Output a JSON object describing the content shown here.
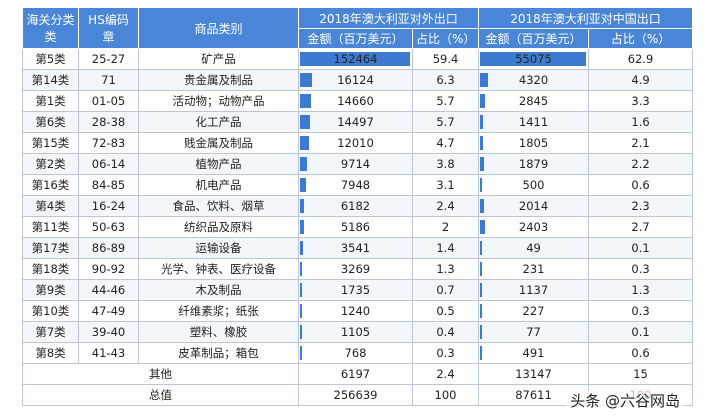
{
  "header": {
    "col_chapter": "海关分类",
    "col_chapter2": "类",
    "col_hs": "HS编码",
    "col_hs2": "章",
    "col_goods": "商品类别",
    "group_total": "2018年澳大利亚对外出口",
    "group_china": "2018年澳大利亚对中国出口",
    "amount_label": "金额（百万美元）",
    "share_label": "占比（%）"
  },
  "max_total": 152464,
  "max_china": 55075,
  "rows": [
    {
      "cls": "第5类",
      "hs": "25-27",
      "goods": "矿产品",
      "total": "152464",
      "total_v": 152464,
      "total_pct": "59.4",
      "china": "55075",
      "china_v": 55075,
      "china_pct": "62.9"
    },
    {
      "cls": "第14类",
      "hs": "71",
      "goods": "贵金属及制品",
      "total": "16124",
      "total_v": 16124,
      "total_pct": "6.3",
      "china": "4320",
      "china_v": 4320,
      "china_pct": "4.9"
    },
    {
      "cls": "第1类",
      "hs": "01-05",
      "goods": "活动物；动物产品",
      "total": "14660",
      "total_v": 14660,
      "total_pct": "5.7",
      "china": "2845",
      "china_v": 2845,
      "china_pct": "3.3"
    },
    {
      "cls": "第6类",
      "hs": "28-38",
      "goods": "化工产品",
      "total": "14497",
      "total_v": 14497,
      "total_pct": "5.7",
      "china": "1411",
      "china_v": 1411,
      "china_pct": "1.6"
    },
    {
      "cls": "第15类",
      "hs": "72-83",
      "goods": "贱金属及制品",
      "total": "12010",
      "total_v": 12010,
      "total_pct": "4.7",
      "china": "1805",
      "china_v": 1805,
      "china_pct": "2.1"
    },
    {
      "cls": "第2类",
      "hs": "06-14",
      "goods": "植物产品",
      "total": "9714",
      "total_v": 9714,
      "total_pct": "3.8",
      "china": "1879",
      "china_v": 1879,
      "china_pct": "2.2"
    },
    {
      "cls": "第16类",
      "hs": "84-85",
      "goods": "机电产品",
      "total": "7948",
      "total_v": 7948,
      "total_pct": "3.1",
      "china": "500",
      "china_v": 500,
      "china_pct": "0.6"
    },
    {
      "cls": "第4类",
      "hs": "16-24",
      "goods": "食品、饮料、烟草",
      "total": "6182",
      "total_v": 6182,
      "total_pct": "2.4",
      "china": "2014",
      "china_v": 2014,
      "china_pct": "2.3"
    },
    {
      "cls": "第11类",
      "hs": "50-63",
      "goods": "纺织品及原料",
      "total": "5186",
      "total_v": 5186,
      "total_pct": "2",
      "china": "2403",
      "china_v": 2403,
      "china_pct": "2.7"
    },
    {
      "cls": "第17类",
      "hs": "86-89",
      "goods": "运输设备",
      "total": "3541",
      "total_v": 3541,
      "total_pct": "1.4",
      "china": "49",
      "china_v": 49,
      "china_pct": "0.1"
    },
    {
      "cls": "第18类",
      "hs": "90-92",
      "goods": "光学、钟表、医疗设备",
      "total": "3269",
      "total_v": 3269,
      "total_pct": "1.3",
      "china": "231",
      "china_v": 231,
      "china_pct": "0.3"
    },
    {
      "cls": "第9类",
      "hs": "44-46",
      "goods": "木及制品",
      "total": "1735",
      "total_v": 1735,
      "total_pct": "0.7",
      "china": "1137",
      "china_v": 1137,
      "china_pct": "1.3"
    },
    {
      "cls": "第10类",
      "hs": "47-49",
      "goods": "纤维素浆；纸张",
      "total": "1240",
      "total_v": 1240,
      "total_pct": "0.5",
      "china": "227",
      "china_v": 227,
      "china_pct": "0.3"
    },
    {
      "cls": "第7类",
      "hs": "39-40",
      "goods": "塑料、橡胶",
      "total": "1105",
      "total_v": 1105,
      "total_pct": "0.4",
      "china": "77",
      "china_v": 77,
      "china_pct": "0.1"
    },
    {
      "cls": "第8类",
      "hs": "41-43",
      "goods": "皮革制品；箱包",
      "total": "768",
      "total_v": 768,
      "total_pct": "0.3",
      "china": "491",
      "china_v": 491,
      "china_pct": "0.6"
    }
  ],
  "other": {
    "label": "其他",
    "total": "6197",
    "total_pct": "2.4",
    "china": "13147",
    "china_pct": "15"
  },
  "sum": {
    "label": "总值",
    "total": "256639",
    "total_pct": "100",
    "china": "87611",
    "china_pct": "100"
  },
  "watermark": "头条 @六谷网岛"
}
